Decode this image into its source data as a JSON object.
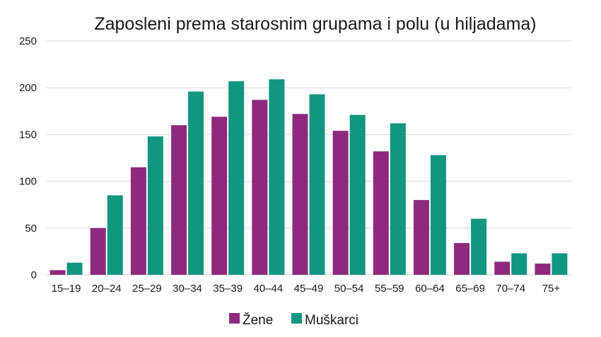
{
  "chart_data": {
    "type": "bar",
    "title": "Zaposleni prema starosnim grupama i polu (u hiljadama)",
    "xlabel": "",
    "ylabel": "",
    "ylim": [
      0,
      250
    ],
    "yticks": [
      0,
      50,
      100,
      150,
      200,
      250
    ],
    "grid": true,
    "legend_position": "bottom",
    "categories": [
      "15–19",
      "20–24",
      "25–29",
      "30–34",
      "35–39",
      "40–44",
      "45–49",
      "50–54",
      "55–59",
      "60–64",
      "65–69",
      "70–74",
      "75+"
    ],
    "series": [
      {
        "name": "Žene",
        "color": "#8e2a7e",
        "values": [
          5,
          50,
          115,
          160,
          169,
          187,
          172,
          154,
          132,
          80,
          34,
          14,
          12
        ]
      },
      {
        "name": "Muškarci",
        "color": "#119680",
        "values": [
          13,
          85,
          148,
          196,
          207,
          209,
          193,
          171,
          162,
          128,
          60,
          23,
          23
        ]
      }
    ]
  }
}
